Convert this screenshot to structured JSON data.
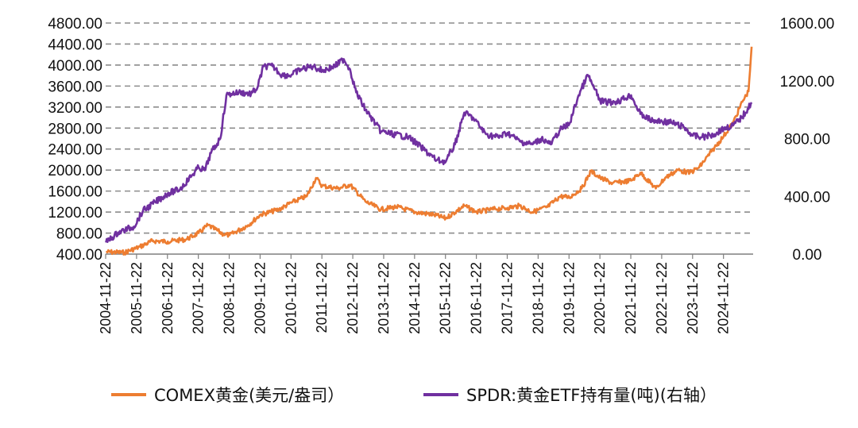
{
  "chart_data": {
    "type": "line",
    "title": "",
    "xlabel": "",
    "ylabel": "",
    "y_left_ticks": [
      "400.00",
      "800.00",
      "1200.00",
      "1600.00",
      "2000.00",
      "2400.00",
      "2800.00",
      "3200.00",
      "3600.00",
      "4000.00",
      "4400.00",
      "4800.00"
    ],
    "y_right_ticks": [
      "0.00",
      "400.00",
      "800.00",
      "1200.00",
      "1600.00"
    ],
    "ylim_left": [
      400,
      4800
    ],
    "ylim_right": [
      0,
      1600
    ],
    "xlim": [
      2004.89,
      2025.85
    ],
    "x_ticks": [
      "2004-11-22",
      "2005-11-22",
      "2006-11-22",
      "2007-11-22",
      "2008-11-22",
      "2009-11-22",
      "2010-11-22",
      "2011-11-22",
      "2012-11-22",
      "2013-11-22",
      "2014-11-22",
      "2015-11-22",
      "2016-11-22",
      "2017-11-22",
      "2018-11-22",
      "2019-11-22",
      "2020-11-22",
      "2021-11-22",
      "2022-11-22",
      "2023-11-22",
      "2024-11-22"
    ],
    "grid": true,
    "legend_position": "bottom",
    "series": [
      {
        "name": "COMEX黄金(美元/盎司）",
        "axis": "left",
        "color": "#ED7D31",
        "x": [
          2004.9,
          2005.5,
          2006.0,
          2006.4,
          2006.9,
          2007.5,
          2007.9,
          2008.2,
          2008.7,
          2008.9,
          2009.5,
          2009.9,
          2010.5,
          2010.9,
          2011.4,
          2011.7,
          2011.9,
          2012.4,
          2012.8,
          2013.3,
          2013.8,
          2014.3,
          2014.9,
          2015.5,
          2015.9,
          2016.5,
          2016.9,
          2017.5,
          2017.9,
          2018.3,
          2018.7,
          2019.2,
          2019.6,
          2019.9,
          2020.3,
          2020.6,
          2020.9,
          2021.3,
          2021.9,
          2022.2,
          2022.7,
          2023.0,
          2023.4,
          2023.8,
          2024.1,
          2024.5,
          2024.9,
          2025.2,
          2025.5,
          2025.7,
          2025.8
        ],
        "y": [
          440,
          430,
          540,
          650,
          640,
          680,
          800,
          950,
          780,
          760,
          950,
          1150,
          1250,
          1380,
          1500,
          1850,
          1700,
          1650,
          1720,
          1400,
          1250,
          1300,
          1200,
          1150,
          1080,
          1320,
          1200,
          1260,
          1280,
          1320,
          1200,
          1300,
          1500,
          1480,
          1650,
          1980,
          1850,
          1750,
          1800,
          1950,
          1650,
          1850,
          2000,
          1950,
          2050,
          2350,
          2650,
          2900,
          3300,
          3500,
          4350
        ]
      },
      {
        "name": "SPDR:黄金ETF持有量(吨)(右轴）",
        "axis": "right",
        "color": "#7030A0",
        "x": [
          2004.9,
          2005.3,
          2005.8,
          2006.1,
          2006.5,
          2006.9,
          2007.3,
          2007.7,
          2007.9,
          2008.1,
          2008.3,
          2008.6,
          2008.8,
          2008.95,
          2009.2,
          2009.6,
          2009.8,
          2010.0,
          2010.3,
          2010.6,
          2010.9,
          2011.2,
          2011.6,
          2011.9,
          2012.3,
          2012.6,
          2012.8,
          2013.0,
          2013.3,
          2013.8,
          2014.2,
          2014.7,
          2015.1,
          2015.6,
          2015.9,
          2016.2,
          2016.5,
          2016.8,
          2017.2,
          2017.6,
          2017.9,
          2018.3,
          2018.7,
          2019.0,
          2019.3,
          2019.6,
          2019.9,
          2020.2,
          2020.5,
          2020.7,
          2020.9,
          2021.2,
          2021.5,
          2021.9,
          2022.2,
          2022.6,
          2022.9,
          2023.2,
          2023.6,
          2023.9,
          2024.2,
          2024.6,
          2024.9,
          2025.2,
          2025.5,
          2025.8
        ],
        "y": [
          80,
          150,
          190,
          300,
          360,
          420,
          450,
          550,
          600,
          580,
          700,
          800,
          1100,
          1110,
          1120,
          1110,
          1150,
          1300,
          1300,
          1240,
          1240,
          1280,
          1300,
          1270,
          1300,
          1350,
          1280,
          1120,
          1000,
          850,
          830,
          810,
          740,
          650,
          640,
          760,
          980,
          940,
          830,
          810,
          840,
          780,
          760,
          800,
          760,
          860,
          900,
          1100,
          1240,
          1150,
          1060,
          1050,
          1060,
          1100,
          970,
          920,
          920,
          910,
          880,
          820,
          810,
          830,
          870,
          890,
          950,
          1050
        ]
      }
    ]
  }
}
